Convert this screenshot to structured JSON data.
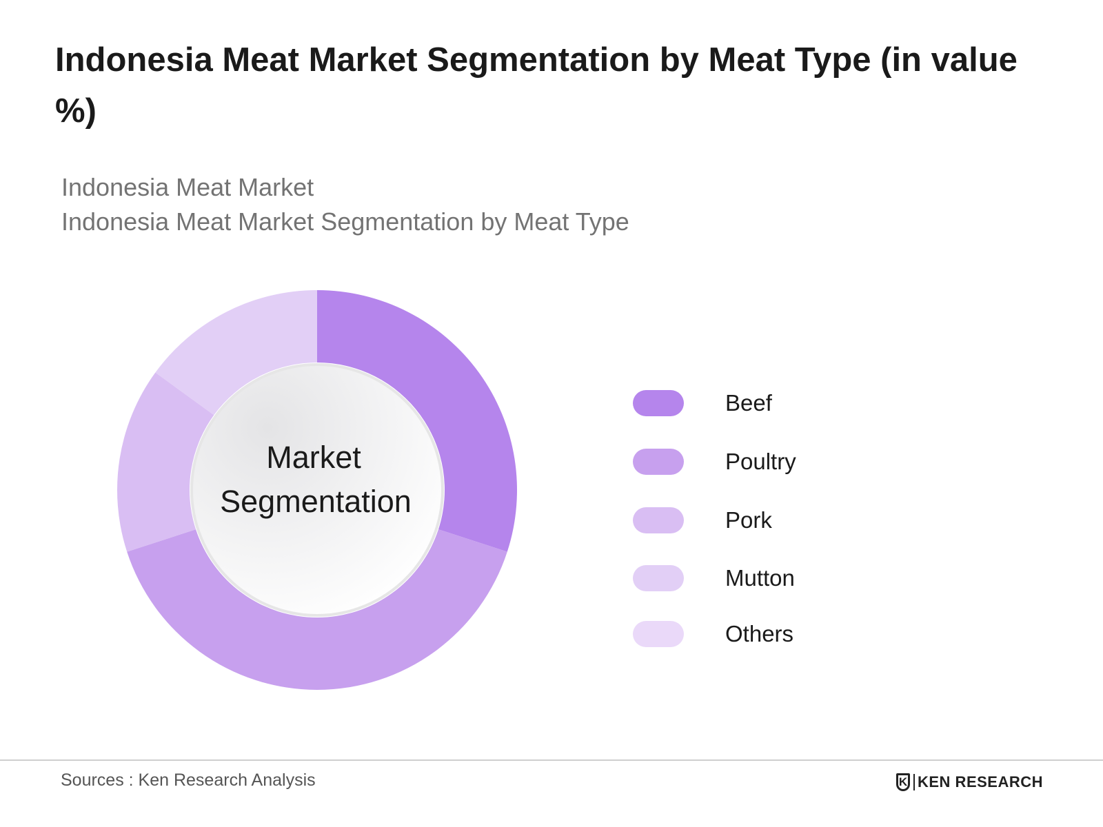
{
  "title": "Indonesia Meat Market Segmentation by Meat Type (in value %)",
  "subtitle_line1": "Indonesia Meat Market",
  "subtitle_line2": "Indonesia Meat Market Segmentation by Meat Type",
  "center_label_line1": "Market",
  "center_label_line2": "Segmentation",
  "source": "Sources : Ken Research Analysis",
  "brand": {
    "mark": "K",
    "name": "KEN RESEARCH"
  },
  "chart_data": {
    "type": "pie",
    "donut": true,
    "categories": [
      "Beef",
      "Poultry",
      "Pork",
      "Mutton",
      "Others"
    ],
    "values": [
      30,
      40,
      15,
      15,
      0
    ],
    "colors": [
      "#b585ec",
      "#c7a0ee",
      "#d9bef3",
      "#e2cff6",
      "#ead9f9"
    ],
    "legend_position": "right"
  }
}
